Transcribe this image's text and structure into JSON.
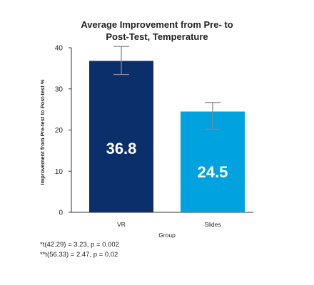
{
  "chart_data": {
    "type": "bar",
    "title_lines": [
      "Average Improvement from Pre- to",
      "Post-Test, Temperature"
    ],
    "xlabel": "Group",
    "ylabel": "Improvement from Pre-test to Post-test %",
    "ylim": [
      0,
      40
    ],
    "yticks": [
      "0",
      "10",
      "20",
      "30",
      "40"
    ],
    "categories": [
      "VR",
      "Slides"
    ],
    "values": [
      36.8,
      24.5
    ],
    "value_labels": [
      "36.8",
      "24.5"
    ],
    "error_high": [
      40.3,
      26.7
    ],
    "error_low": [
      33.5,
      20.2
    ],
    "bar_colors": [
      "#0a2f6b",
      "#00a3e0"
    ],
    "grid": false,
    "legend": "none"
  },
  "footnotes": [
    "*t(42.29) = 3.23, p = 0.002",
    "**t(56.33) = 2.47, p = 0.02"
  ]
}
